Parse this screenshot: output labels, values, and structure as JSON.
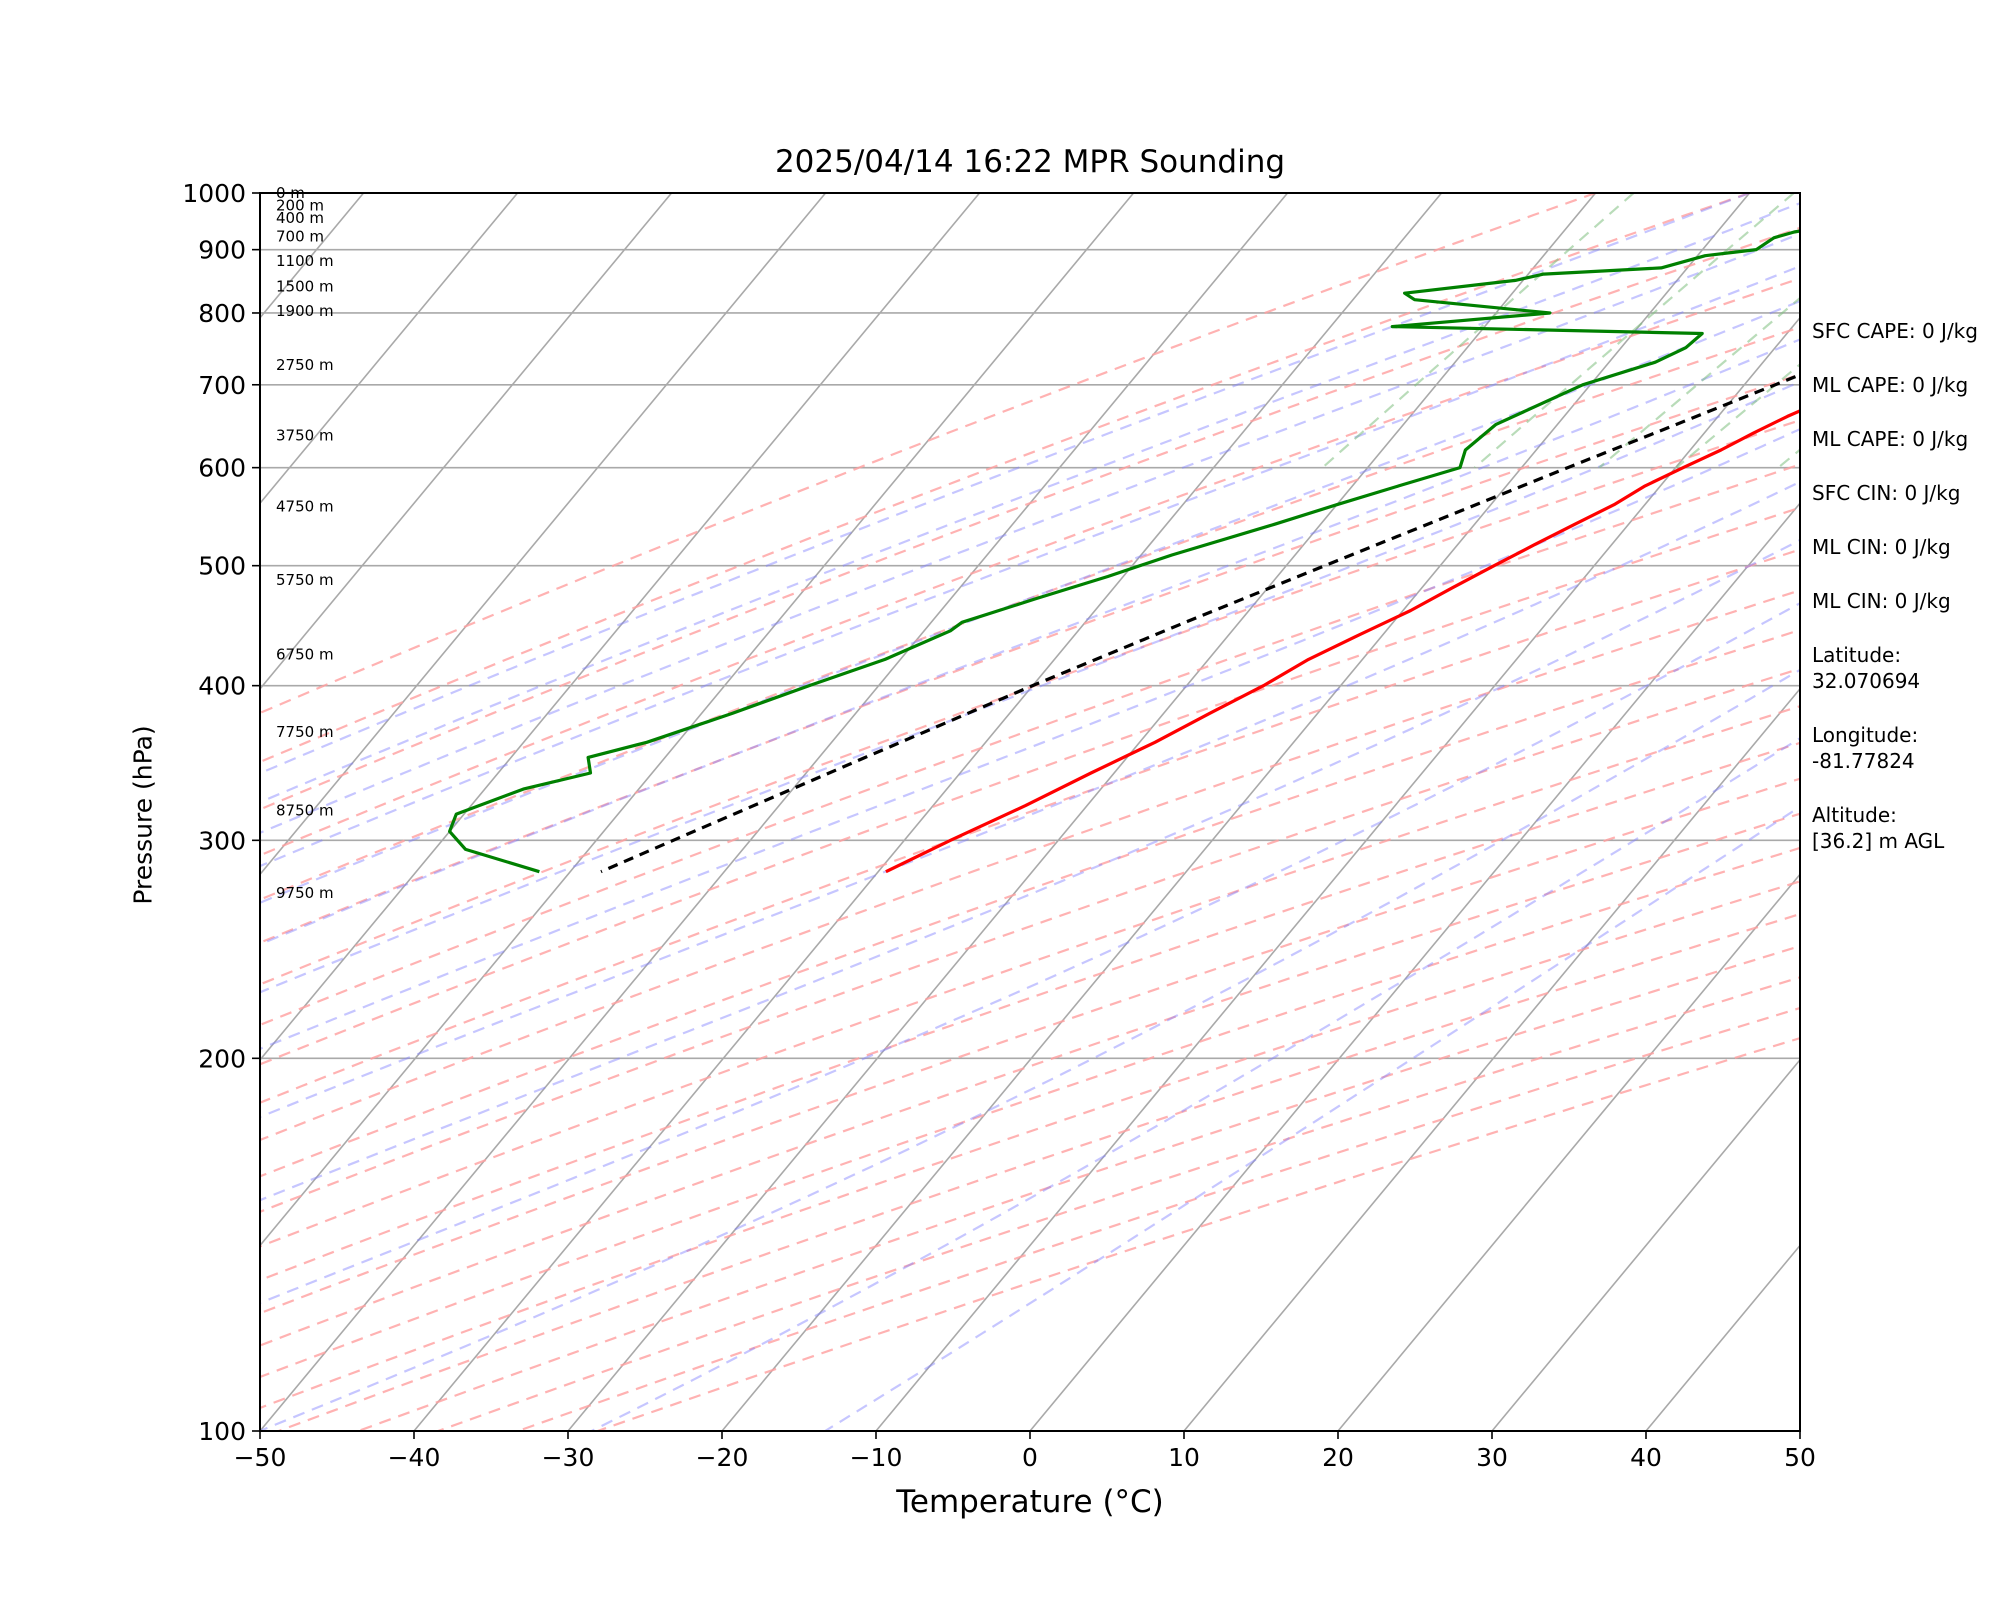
{
  "chart_data": {
    "type": "line",
    "title": "2025/04/14 16:22 MPR Sounding",
    "xlabel": "Temperature (°C)",
    "ylabel": "Pressure (hPa)",
    "xlim": [
      -50,
      50
    ],
    "ylim": [
      1000,
      100
    ],
    "y_scale": "log",
    "grid": true,
    "x_ticks": [
      -50,
      -40,
      -30,
      -20,
      -10,
      0,
      10,
      20,
      30,
      40,
      50
    ],
    "x_tick_labels": [
      "−50",
      "−40",
      "−30",
      "−20",
      "−10",
      "0",
      "10",
      "20",
      "30",
      "40",
      "50"
    ],
    "y_ticks": [
      100,
      200,
      300,
      400,
      500,
      600,
      700,
      800,
      900,
      1000
    ],
    "y_tick_labels": [
      "100",
      "200",
      "300",
      "400",
      "500",
      "600",
      "700",
      "800",
      "900",
      "1000"
    ],
    "height_labels": [
      {
        "p": 1000,
        "label": "0 m"
      },
      {
        "p": 977,
        "label": "200 m"
      },
      {
        "p": 955,
        "label": "400 m"
      },
      {
        "p": 922,
        "label": "700 m"
      },
      {
        "p": 881,
        "label": "1100 m"
      },
      {
        "p": 840,
        "label": "1500 m"
      },
      {
        "p": 803,
        "label": "1900 m"
      },
      {
        "p": 726,
        "label": "2750 m"
      },
      {
        "p": 637,
        "label": "3750 m"
      },
      {
        "p": 558,
        "label": "4750 m"
      },
      {
        "p": 487,
        "label": "5750 m"
      },
      {
        "p": 424,
        "label": "6750 m"
      },
      {
        "p": 367,
        "label": "7750 m"
      },
      {
        "p": 317,
        "label": "8750 m"
      },
      {
        "p": 272,
        "label": "9750 m"
      }
    ],
    "series": [
      {
        "role": "temperature",
        "color": "#ff0000",
        "points": [
          [
            1000,
            22
          ],
          [
            980,
            18
          ],
          [
            960,
            15
          ],
          [
            940,
            13
          ],
          [
            920,
            12
          ],
          [
            900,
            10.5
          ],
          [
            880,
            9.5
          ],
          [
            860,
            8.5
          ],
          [
            840,
            7.5
          ],
          [
            820,
            6.5
          ],
          [
            800,
            5.5
          ],
          [
            780,
            4
          ],
          [
            760,
            2.3
          ],
          [
            740,
            0.5
          ],
          [
            720,
            -1.2
          ],
          [
            700,
            -2.5
          ],
          [
            680,
            -4
          ],
          [
            660,
            -5.5
          ],
          [
            640,
            -6.8
          ],
          [
            620,
            -8
          ],
          [
            600,
            -9.5
          ],
          [
            580,
            -11
          ],
          [
            560,
            -12
          ],
          [
            540,
            -13.5
          ],
          [
            520,
            -15
          ],
          [
            500,
            -16.5
          ],
          [
            480,
            -18
          ],
          [
            460,
            -19.5
          ],
          [
            440,
            -21.5
          ],
          [
            420,
            -23.5
          ],
          [
            400,
            -25
          ],
          [
            380,
            -27
          ],
          [
            360,
            -29
          ],
          [
            340,
            -31.5
          ],
          [
            320,
            -34
          ],
          [
            300,
            -37
          ],
          [
            283,
            -39.5
          ]
        ]
      },
      {
        "role": "parcel",
        "color": "#000000",
        "dashed": true,
        "points": [
          [
            1000,
            22
          ],
          [
            950,
            16.9
          ],
          [
            900,
            11.5
          ],
          [
            850,
            5.8
          ],
          [
            820,
            2.3
          ],
          [
            800,
            0
          ],
          [
            750,
            -4
          ],
          [
            700,
            -8
          ],
          [
            650,
            -12.3
          ],
          [
            600,
            -17
          ],
          [
            550,
            -22
          ],
          [
            500,
            -27.5
          ],
          [
            450,
            -33.5
          ],
          [
            400,
            -40
          ],
          [
            350,
            -47
          ],
          [
            300,
            -55
          ],
          [
            283,
            -58
          ]
        ]
      },
      {
        "role": "dewpoint",
        "color": "#008000",
        "points": [
          [
            1000,
            4.5
          ],
          [
            990,
            1.5
          ],
          [
            980,
            -2
          ],
          [
            970,
            -4.2
          ],
          [
            960,
            -5
          ],
          [
            955,
            -5.5
          ],
          [
            950,
            -10
          ],
          [
            945,
            -12.2
          ],
          [
            940,
            -11
          ],
          [
            935,
            -14
          ],
          [
            930,
            -15
          ],
          [
            920,
            -16
          ],
          [
            900,
            -16.5
          ],
          [
            890,
            -19.5
          ],
          [
            870,
            -21.7
          ],
          [
            860,
            -29
          ],
          [
            850,
            -30.5
          ],
          [
            830,
            -37
          ],
          [
            820,
            -36
          ],
          [
            800,
            -26.5
          ],
          [
            780,
            -36
          ],
          [
            770,
            -15.5
          ],
          [
            750,
            -15.8
          ],
          [
            730,
            -17
          ],
          [
            700,
            -20.5
          ],
          [
            650,
            -24
          ],
          [
            620,
            -24.6
          ],
          [
            600,
            -24
          ],
          [
            580,
            -27
          ],
          [
            560,
            -30
          ],
          [
            540,
            -33
          ],
          [
            510,
            -38
          ],
          [
            490,
            -41
          ],
          [
            470,
            -44.5
          ],
          [
            450,
            -48
          ],
          [
            443,
            -48.3
          ],
          [
            420,
            -51
          ],
          [
            400,
            -54.5
          ],
          [
            380,
            -58
          ],
          [
            360,
            -62
          ],
          [
            350,
            -65
          ],
          [
            340,
            -64
          ],
          [
            330,
            -67.5
          ],
          [
            315,
            -70.5
          ],
          [
            305,
            -70
          ],
          [
            295,
            -68
          ],
          [
            283,
            -62
          ]
        ]
      }
    ],
    "background_lines": {
      "isotherms_step_C": 10,
      "dry_adiabats": true,
      "moist_adiabats": true,
      "mixing_ratio_lines": true
    }
  },
  "stats": [
    {
      "key": "sfc_cape",
      "text": "SFC CAPE: 0 J/kg"
    },
    {
      "key": "ml_cape",
      "text": "ML CAPE: 0 J/kg"
    },
    {
      "key": "ml_cape_2",
      "text": "ML CAPE: 0 J/kg"
    },
    {
      "key": "sfc_cin",
      "text": "SFC CIN: 0 J/kg"
    },
    {
      "key": "ml_cin",
      "text": "ML CIN: 0 J/kg"
    },
    {
      "key": "ml_cin_2",
      "text": "ML CIN: 0 J/kg"
    }
  ],
  "location": {
    "latitude_label": "Latitude:",
    "latitude_value": "32.070694",
    "longitude_label": "Longitude:",
    "longitude_value": "-81.77824",
    "altitude_label": "Altitude:",
    "altitude_value": "[36.2] m AGL"
  },
  "colors": {
    "temperature": "#ff0000",
    "dewpoint": "#008000",
    "parcel": "#000000",
    "isotherm": "#a9a9a9",
    "dry_adiabat": "#ff9f9f",
    "moist_adiabat": "#8080ff",
    "mixing_ratio": "#7fbf7f"
  }
}
